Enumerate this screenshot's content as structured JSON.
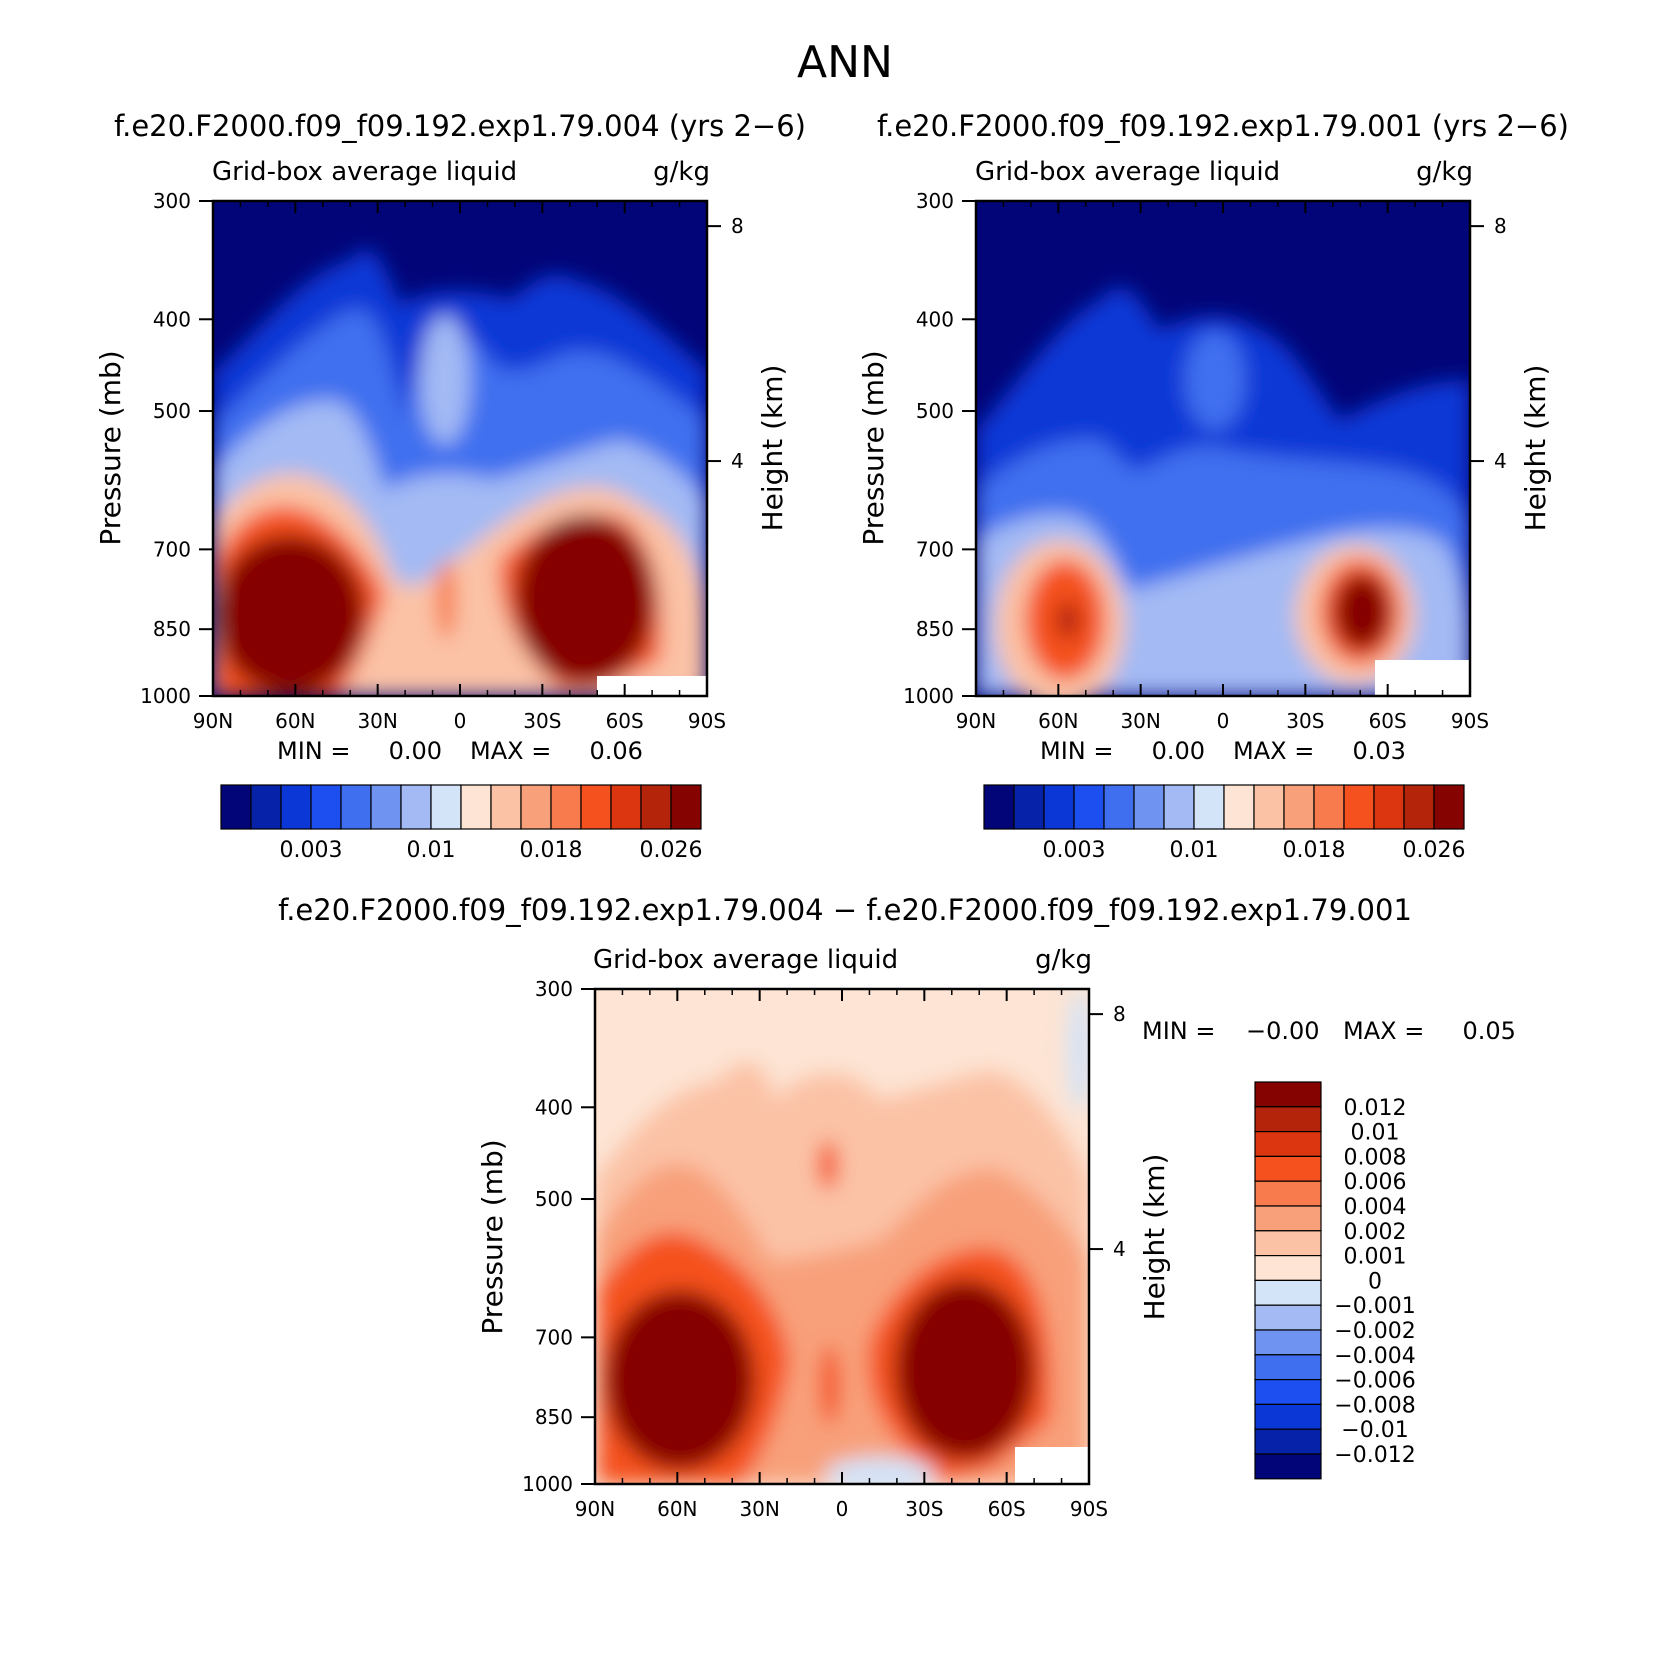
{
  "figure": {
    "season": "ANN",
    "diff_title": "f.e20.F2000.f09_f09.192.exp1.79.004 − f.e20.F2000.f09_f09.192.exp1.79.001"
  },
  "abs_colors": [
    "#020578",
    "#0622a8",
    "#0a37d6",
    "#1d4ff0",
    "#3f6fef",
    "#6e93f0",
    "#a3baf4",
    "#d3e3f8",
    "#fde4d4",
    "#fbc2a6",
    "#f8a07a",
    "#f77b4d",
    "#f5511e",
    "#dc3610",
    "#b3240a",
    "#850402"
  ],
  "diff_colors": [
    "#020578",
    "#0622a8",
    "#0a37d6",
    "#1d4ff0",
    "#3f6fef",
    "#6e93f0",
    "#a3baf4",
    "#d3e3f8",
    "#fde4d4",
    "#fbc2a6",
    "#f8a07a",
    "#f77b4d",
    "#f5511e",
    "#dc3610",
    "#b3240a",
    "#850402"
  ],
  "chart_data": [
    {
      "type": "heatmap",
      "case_title": "f.e20.F2000.f09_f09.192.exp1.79.004 (yrs 2−6)",
      "title": "Grid-box average liquid",
      "units": "g/kg",
      "xlabel": "",
      "ylabel": "Pressure (mb)",
      "y2label": "Height (km)",
      "x_ticks": [
        "90N",
        "60N",
        "30N",
        "0",
        "30S",
        "60S",
        "90S"
      ],
      "y_ticks": [
        "300",
        "400",
        "500",
        "700",
        "850",
        "1000"
      ],
      "y2_ticks": [
        "8",
        "4"
      ],
      "ylim": [
        1000,
        300
      ],
      "min_text": "MIN =     0.00",
      "max_text": "MAX =     0.06",
      "colorbar_labels": [
        "0.003",
        "0.01",
        "0.018",
        "0.026"
      ],
      "features": [
        {
          "lat": 62,
          "p": 880,
          "value": 0.045
        },
        {
          "lat": -58,
          "p": 860,
          "value": 0.06
        },
        {
          "lat": 3,
          "p": 860,
          "value": 0.016
        },
        {
          "lat": 0,
          "p": 560,
          "value": 0.012
        }
      ]
    },
    {
      "type": "heatmap",
      "case_title": "f.e20.F2000.f09_f09.192.exp1.79.001 (yrs 2−6)",
      "title": "Grid-box average liquid",
      "units": "g/kg",
      "xlabel": "",
      "ylabel": "Pressure (mb)",
      "y2label": "Height (km)",
      "x_ticks": [
        "90N",
        "60N",
        "30N",
        "0",
        "30S",
        "60S",
        "90S"
      ],
      "y_ticks": [
        "300",
        "400",
        "500",
        "700",
        "850",
        "1000"
      ],
      "y2_ticks": [
        "8",
        "4"
      ],
      "ylim": [
        1000,
        300
      ],
      "min_text": "MIN =     0.00",
      "max_text": "MAX =     0.03",
      "colorbar_labels": [
        "0.003",
        "0.01",
        "0.018",
        "0.026"
      ],
      "features": [
        {
          "lat": 58,
          "p": 880,
          "value": 0.022
        },
        {
          "lat": -56,
          "p": 870,
          "value": 0.03
        },
        {
          "lat": 3,
          "p": 860,
          "value": 0.01
        },
        {
          "lat": 0,
          "p": 560,
          "value": 0.008
        }
      ]
    },
    {
      "type": "heatmap",
      "case_title": "",
      "title": "Grid-box average liquid",
      "units": "g/kg",
      "xlabel": "",
      "ylabel": "Pressure (mb)",
      "y2label": "Height (km)",
      "x_ticks": [
        "90N",
        "60N",
        "30N",
        "0",
        "30S",
        "60S",
        "90S"
      ],
      "y_ticks": [
        "300",
        "400",
        "500",
        "700",
        "850",
        "1000"
      ],
      "y2_ticks": [
        "8",
        "4"
      ],
      "ylim": [
        1000,
        300
      ],
      "min_text": "MIN =    −0.00",
      "max_text": "MAX =     0.05",
      "colorbar_labels": [
        "0.012",
        "0.01",
        "0.008",
        "0.006",
        "0.004",
        "0.002",
        "0.001",
        "0",
        "−0.001",
        "−0.002",
        "−0.004",
        "−0.006",
        "−0.008",
        "−0.01",
        "−0.012"
      ],
      "features": [
        {
          "lat": 62,
          "p": 880,
          "value": 0.03
        },
        {
          "lat": -58,
          "p": 860,
          "value": 0.05
        },
        {
          "lat": 3,
          "p": 860,
          "value": 0.006
        },
        {
          "lat": 0,
          "p": 560,
          "value": 0.004
        }
      ]
    }
  ]
}
